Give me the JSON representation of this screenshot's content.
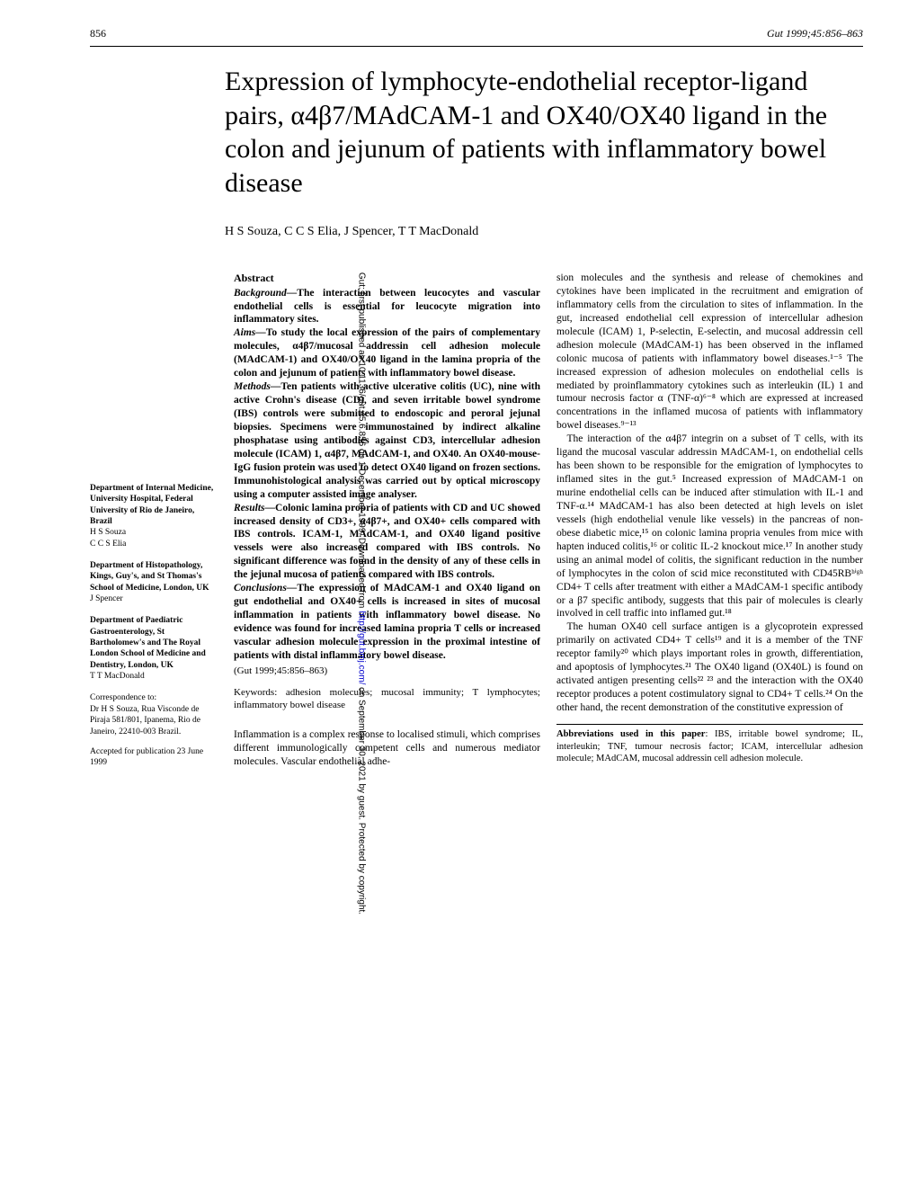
{
  "header": {
    "page_number": "856",
    "journal_ref": "Gut 1999;45:856–863"
  },
  "title": "Expression of lymphocyte-endothelial receptor-ligand pairs, α4β7/MAdCAM-1 and OX40/OX40 ligand in the colon and jejunum of patients with inflammatory bowel disease",
  "authors": "H S Souza, C C S Elia, J Spencer, T T MacDonald",
  "abstract": {
    "heading": "Abstract",
    "background": {
      "label": "Background—",
      "text": "The interaction between leucocytes and vascular endothelial cells is essential for leucocyte migration into inflammatory sites."
    },
    "aims": {
      "label": "Aims—",
      "text": "To study the local expression of the pairs of complementary molecules, α4β7/mucosal addressin cell adhesion molecule (MAdCAM-1) and OX40/OX40 ligand in the lamina propria of the colon and jejunum of patients with inflammatory bowel disease."
    },
    "methods": {
      "label": "Methods—",
      "text": "Ten patients with active ulcerative colitis (UC), nine with active Crohn's disease (CD), and seven irritable bowel syndrome (IBS) controls were submitted to endoscopic and peroral jejunal biopsies. Specimens were immunostained by indirect alkaline phosphatase using antibodies against CD3, intercellular adhesion molecule (ICAM) 1, α4β7, MAdCAM-1, and OX40. An OX40-mouse-IgG fusion protein was used to detect OX40 ligand on frozen sections. Immunohistological analysis was carried out by optical microscopy using a computer assisted image analyser."
    },
    "results": {
      "label": "Results—",
      "text": "Colonic lamina propria of patients with CD and UC showed increased density of CD3+, α4β7+, and OX40+ cells compared with IBS controls. ICAM-1, MAdCAM-1, and OX40 ligand positive vessels were also increased compared with IBS controls. No significant difference was found in the density of any of these cells in the jejunal mucosa of patients compared with IBS controls."
    },
    "conclusions": {
      "label": "Conclusions—",
      "text": "The expression of MAdCAM-1 and OX40 ligand on gut endothelial and OX40+ cells is increased in sites of mucosal inflammation in patients with inflammatory bowel disease. No evidence was found for increased lamina propria T cells or increased vascular adhesion molecule expression in the proximal intestine of patients with distal inflammatory bowel disease."
    },
    "citation": "(Gut 1999;45:856–863)",
    "keywords": "Keywords: adhesion molecules; mucosal immunity; T lymphocytes; inflammatory bowel disease"
  },
  "intro": {
    "p1": "Inflammation is a complex response to localised stimuli, which comprises different immunologically competent cells and numerous mediator molecules. Vascular endothelial adhe-",
    "p2a": "sion molecules and the synthesis and release of chemokines and cytokines have been implicated in the recruitment and emigration of inflammatory cells from the circulation to sites of inflammation. In the gut, increased endothelial cell expression of intercellular adhesion molecule (ICAM) 1, P-selectin, E-selectin, and mucosal addressin cell adhesion molecule (MAdCAM-1) has been observed in the inflamed colonic mucosa of patients with inflammatory bowel diseases.¹⁻⁵ The increased expression of adhesion molecules on endothelial cells is mediated by proinflammatory cytokines such as interleukin (IL) 1 and tumour necrosis factor α (TNF-α)⁶⁻⁸ which are expressed at increased concentrations in the inflamed mucosa of patients with inflammatory bowel diseases.⁹⁻¹³",
    "p2b": "The interaction of the α4β7 integrin on a subset of T cells, with its ligand the mucosal vascular addressin MAdCAM-1, on endothelial cells has been shown to be responsible for the emigration of lymphocytes to inflamed sites in the gut.⁵ Increased expression of MAdCAM-1 on murine endothelial cells can be induced after stimulation with IL-1 and TNF-α.¹⁴ MAdCAM-1 has also been detected at high levels on islet vessels (high endothelial venule like vessels) in the pancreas of non-obese diabetic mice,¹⁵ on colonic lamina propria venules from mice with hapten induced colitis,¹⁶ or colitic IL-2 knockout mice.¹⁷ In another study using an animal model of colitis, the significant reduction in the number of lymphocytes in the colon of scid mice reconstituted with CD45RBʰⁱᵍʰ CD4+ T cells after treatment with either a MAdCAM-1 specific antibody or a β7 specific antibody, suggests that this pair of molecules is clearly involved in cell traffic into inflamed gut.¹⁸",
    "p2c": "The human OX40 cell surface antigen is a glycoprotein expressed primarily on activated CD4+ T cells¹⁹ and it is a member of the TNF receptor family²⁰ which plays important roles in growth, differentiation, and apoptosis of lymphocytes.²¹ The OX40 ligand (OX40L) is found on activated antigen presenting cells²² ²³ and the interaction with the OX40 receptor produces a potent costimulatory signal to CD4+ T cells.²⁴ On the other hand, the recent demonstration of the constitutive expression of"
  },
  "affiliations": [
    {
      "dept": "Department of Internal Medicine, University Hospital, Federal University of Rio de Janeiro, Brazil",
      "names": "H S Souza\nC C S Elia"
    },
    {
      "dept": "Department of Histopathology, Kings, Guy's, and St Thomas's School of Medicine, London, UK",
      "names": "J Spencer"
    },
    {
      "dept": "Department of Paediatric Gastroenterology, St Bartholomew's and The Royal London School of Medicine and Dentistry, London, UK",
      "names": "T T MacDonald"
    }
  ],
  "correspondence": "Correspondence to:\nDr H S Souza, Rua Visconde de Piraja 581/801, Ipanema, Rio de Janeiro, 22410-003 Brazil.",
  "accepted": "Accepted for publication 23 June 1999",
  "abbreviations": {
    "label": "Abbreviations used in this paper",
    "text": ": IBS, irritable bowel syndrome; IL, interleukin; TNF, tumour necrosis factor; ICAM, intercellular adhesion molecule; MAdCAM, mucosal addressin cell adhesion molecule."
  },
  "side_text": {
    "prefix": "Gut: first published as 10.1136/gut.45.6.856 on 1 December 1999. Downloaded from ",
    "link": "http://gut.bmj.com/",
    "suffix": " on September 30, 2021 by guest. Protected by copyright."
  }
}
